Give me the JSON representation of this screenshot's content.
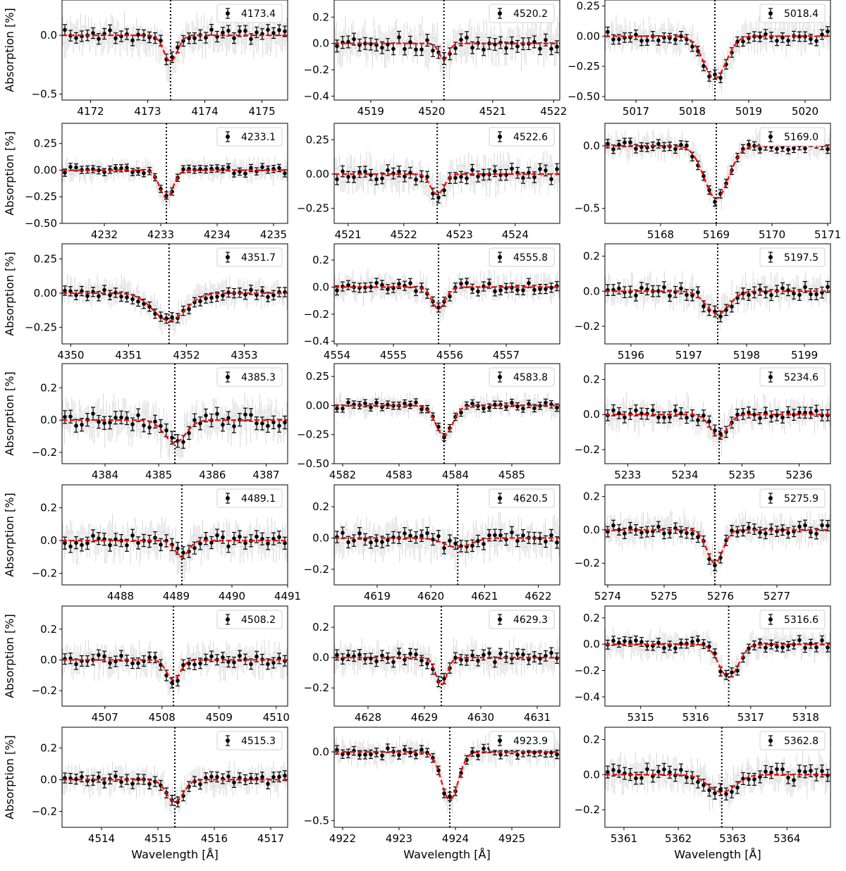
{
  "figure": {
    "ylabel": "Absorption [%]",
    "xlabel": "Wavelength [Å]",
    "fit_color": "#ff0000",
    "point_color": "#000000",
    "raw_color": "#bbbbbb",
    "marker_line_style": "dotted"
  },
  "chart_data": [
    {
      "type": "line",
      "legend": "4173.4",
      "line_center": 4173.4,
      "x_ticks": [
        4172,
        4173,
        4174,
        4175
      ],
      "xlim": [
        4171.5,
        4175.45
      ],
      "y_ticks": [
        -0.5,
        0.0
      ],
      "y_tick_labels": [
        "−0.5",
        "0.0"
      ],
      "ylim": [
        -0.55,
        0.3
      ],
      "dip_depth": 0.22,
      "dip_width": 0.12,
      "noise": 0.06,
      "seed": 11
    },
    {
      "type": "line",
      "legend": "4520.2",
      "line_center": 4520.2,
      "x_ticks": [
        4519,
        4520,
        4521,
        4522
      ],
      "xlim": [
        4518.4,
        4522.1
      ],
      "y_ticks": [
        -0.4,
        -0.2,
        0.0,
        0.2
      ],
      "y_tick_labels": [
        "−0.4",
        "−0.2",
        "0.0",
        "0.2"
      ],
      "ylim": [
        -0.43,
        0.33
      ],
      "dip_depth": 0.12,
      "dip_width": 0.08,
      "noise": 0.06,
      "seed": 12
    },
    {
      "type": "line",
      "legend": "5018.4",
      "line_center": 5018.4,
      "x_ticks": [
        5017,
        5018,
        5019,
        5020
      ],
      "xlim": [
        5016.45,
        5020.45
      ],
      "y_ticks": [
        -0.5,
        -0.25,
        0.0,
        0.25
      ],
      "y_tick_labels": [
        "−0.50",
        "−0.25",
        "0.00",
        "0.25"
      ],
      "ylim": [
        -0.53,
        0.3
      ],
      "dip_depth": 0.35,
      "dip_width": 0.2,
      "noise": 0.05,
      "seed": 13
    },
    {
      "type": "line",
      "legend": "4233.1",
      "line_center": 4233.1,
      "x_ticks": [
        4232,
        4233,
        4234,
        4235
      ],
      "xlim": [
        4231.25,
        4235.25
      ],
      "y_ticks": [
        -0.5,
        -0.25,
        0.0,
        0.25
      ],
      "y_tick_labels": [
        "−0.50",
        "−0.25",
        "0.00",
        "0.25"
      ],
      "ylim": [
        -0.5,
        0.44
      ],
      "dip_depth": 0.26,
      "dip_width": 0.12,
      "noise": 0.04,
      "seed": 14
    },
    {
      "type": "line",
      "legend": "4522.6",
      "line_center": 4522.6,
      "x_ticks": [
        4521,
        4522,
        4523,
        4524
      ],
      "xlim": [
        4520.75,
        4524.8
      ],
      "y_ticks": [
        -0.25,
        0.0,
        0.25
      ],
      "y_tick_labels": [
        "−0.25",
        "0.00",
        "0.25"
      ],
      "ylim": [
        -0.36,
        0.37
      ],
      "dip_depth": 0.15,
      "dip_width": 0.12,
      "noise": 0.05,
      "seed": 15
    },
    {
      "type": "line",
      "legend": "5169.0",
      "line_center": 5169.0,
      "x_ticks": [
        5168,
        5169,
        5170,
        5171
      ],
      "xlim": [
        5167.0,
        5171.05
      ],
      "y_ticks": [
        -0.5,
        0.0
      ],
      "y_tick_labels": [
        "−0.5",
        "0.0"
      ],
      "ylim": [
        -0.62,
        0.18
      ],
      "dip_depth": 0.42,
      "dip_width": 0.22,
      "noise": 0.04,
      "seed": 16
    },
    {
      "type": "line",
      "legend": "4351.7",
      "line_center": 4351.7,
      "x_ticks": [
        4350,
        4351,
        4352,
        4353
      ],
      "xlim": [
        4349.85,
        4353.75
      ],
      "y_ticks": [
        -0.25,
        0.0,
        0.25
      ],
      "y_tick_labels": [
        "−0.25",
        "0.00",
        "0.25"
      ],
      "ylim": [
        -0.37,
        0.36
      ],
      "dip_depth": 0.2,
      "dip_width": 0.28,
      "noise": 0.04,
      "seed": 17
    },
    {
      "type": "line",
      "legend": "4555.8",
      "line_center": 4555.8,
      "x_ticks": [
        4554,
        4555,
        4556,
        4557
      ],
      "xlim": [
        4553.95,
        4557.95
      ],
      "y_ticks": [
        -0.4,
        -0.2,
        0.0,
        0.2
      ],
      "y_tick_labels": [
        "−0.4",
        "−0.2",
        "0.0",
        "0.2"
      ],
      "ylim": [
        -0.42,
        0.32
      ],
      "dip_depth": 0.16,
      "dip_width": 0.12,
      "noise": 0.04,
      "seed": 18
    },
    {
      "type": "line",
      "legend": "5197.5",
      "line_center": 5197.5,
      "x_ticks": [
        5196,
        5197,
        5198,
        5199
      ],
      "xlim": [
        5195.55,
        5199.45
      ],
      "y_ticks": [
        -0.2,
        0.0,
        0.2
      ],
      "y_tick_labels": [
        "−0.2",
        "0.0",
        "0.2"
      ],
      "ylim": [
        -0.3,
        0.27
      ],
      "dip_depth": 0.13,
      "dip_width": 0.2,
      "noise": 0.035,
      "seed": 19
    },
    {
      "type": "line",
      "legend": "4385.3",
      "line_center": 4385.3,
      "x_ticks": [
        4384,
        4385,
        4386,
        4387
      ],
      "xlim": [
        4383.2,
        4387.4
      ],
      "y_ticks": [
        -0.2,
        0.0,
        0.2
      ],
      "y_tick_labels": [
        "−0.2",
        "0.0",
        "0.2"
      ],
      "ylim": [
        -0.27,
        0.35
      ],
      "dip_depth": 0.14,
      "dip_width": 0.2,
      "noise": 0.05,
      "seed": 20
    },
    {
      "type": "line",
      "legend": "4583.8",
      "line_center": 4583.8,
      "x_ticks": [
        4582,
        4583,
        4584,
        4585
      ],
      "xlim": [
        4581.85,
        4585.85
      ],
      "y_ticks": [
        -0.5,
        -0.25,
        0.0,
        0.25
      ],
      "y_tick_labels": [
        "−0.50",
        "−0.25",
        "0.00",
        "0.25"
      ],
      "ylim": [
        -0.5,
        0.36
      ],
      "dip_depth": 0.26,
      "dip_width": 0.15,
      "noise": 0.035,
      "seed": 21
    },
    {
      "type": "line",
      "legend": "5234.6",
      "line_center": 5234.6,
      "x_ticks": [
        5233,
        5234,
        5235,
        5236
      ],
      "xlim": [
        5232.6,
        5236.55
      ],
      "y_ticks": [
        -0.2,
        0.0,
        0.2
      ],
      "y_tick_labels": [
        "−0.2",
        "0.0",
        "0.2"
      ],
      "ylim": [
        -0.28,
        0.29
      ],
      "dip_depth": 0.13,
      "dip_width": 0.15,
      "noise": 0.035,
      "seed": 22
    },
    {
      "type": "line",
      "legend": "4489.1",
      "line_center": 4489.1,
      "x_ticks": [
        4488,
        4489,
        4490,
        4491
      ],
      "xlim": [
        4486.95,
        4491.0
      ],
      "y_ticks": [
        -0.2,
        0.0,
        0.2
      ],
      "y_tick_labels": [
        "−0.2",
        "0.0",
        "0.2"
      ],
      "ylim": [
        -0.27,
        0.34
      ],
      "dip_depth": 0.1,
      "dip_width": 0.12,
      "noise": 0.045,
      "seed": 23
    },
    {
      "type": "line",
      "legend": "4620.5",
      "line_center": 4620.5,
      "x_ticks": [
        4619,
        4620,
        4621,
        4622
      ],
      "xlim": [
        4618.2,
        4622.4
      ],
      "y_ticks": [
        -0.2,
        0.0,
        0.2
      ],
      "y_tick_labels": [
        "−0.2",
        "0.0",
        "0.2"
      ],
      "ylim": [
        -0.3,
        0.34
      ],
      "dip_depth": 0.06,
      "dip_width": 0.25,
      "noise": 0.045,
      "seed": 24
    },
    {
      "type": "line",
      "legend": "5275.9",
      "line_center": 5275.9,
      "x_ticks": [
        5274,
        5275,
        5276,
        5277
      ],
      "xlim": [
        5273.95,
        5277.95
      ],
      "y_ticks": [
        -0.2,
        0.0,
        0.2
      ],
      "y_tick_labels": [
        "−0.2",
        "0.0",
        "0.2"
      ],
      "ylim": [
        -0.33,
        0.27
      ],
      "dip_depth": 0.2,
      "dip_width": 0.14,
      "noise": 0.035,
      "seed": 25
    },
    {
      "type": "line",
      "legend": "4508.2",
      "line_center": 4508.2,
      "x_ticks": [
        4507,
        4508,
        4509,
        4510
      ],
      "xlim": [
        4506.25,
        4510.2
      ],
      "y_ticks": [
        -0.2,
        0.0,
        0.2
      ],
      "y_tick_labels": [
        "−0.2",
        "0.0",
        "0.2"
      ],
      "ylim": [
        -0.3,
        0.35
      ],
      "dip_depth": 0.13,
      "dip_width": 0.12,
      "noise": 0.04,
      "seed": 26
    },
    {
      "type": "line",
      "legend": "4629.3",
      "line_center": 4629.3,
      "x_ticks": [
        4628,
        4629,
        4630,
        4631
      ],
      "xlim": [
        4627.4,
        4631.4
      ],
      "y_ticks": [
        -0.2,
        0.0,
        0.2
      ],
      "y_tick_labels": [
        "−0.2",
        "0.0",
        "0.2"
      ],
      "ylim": [
        -0.32,
        0.34
      ],
      "dip_depth": 0.18,
      "dip_width": 0.1,
      "noise": 0.04,
      "seed": 27
    },
    {
      "type": "line",
      "legend": "5316.6",
      "line_center": 5316.6,
      "x_ticks": [
        5315,
        5316,
        5317,
        5318
      ],
      "xlim": [
        5314.35,
        5318.45
      ],
      "y_ticks": [
        -0.4,
        -0.2,
        0.0,
        0.2
      ],
      "y_tick_labels": [
        "−0.4",
        "−0.2",
        "0.0",
        "0.2"
      ],
      "ylim": [
        -0.47,
        0.29
      ],
      "dip_depth": 0.25,
      "dip_width": 0.18,
      "noise": 0.04,
      "seed": 28
    },
    {
      "type": "line",
      "legend": "4515.3",
      "line_center": 4515.3,
      "x_ticks": [
        4514,
        4515,
        4516,
        4517
      ],
      "xlim": [
        4513.3,
        4517.3
      ],
      "y_ticks": [
        -0.2,
        0.0,
        0.2
      ],
      "y_tick_labels": [
        "−0.2",
        "0.0",
        "0.2"
      ],
      "ylim": [
        -0.3,
        0.33
      ],
      "dip_depth": 0.14,
      "dip_width": 0.15,
      "noise": 0.035,
      "seed": 29
    },
    {
      "type": "line",
      "legend": "4923.9",
      "line_center": 4923.9,
      "x_ticks": [
        4922,
        4923,
        4924,
        4925
      ],
      "xlim": [
        4921.85,
        4925.85
      ],
      "y_ticks": [
        -0.5,
        0.0
      ],
      "y_tick_labels": [
        "−0.5",
        "0.0"
      ],
      "ylim": [
        -0.55,
        0.18
      ],
      "dip_depth": 0.35,
      "dip_width": 0.15,
      "noise": 0.035,
      "seed": 30
    },
    {
      "type": "line",
      "legend": "5362.8",
      "line_center": 5362.8,
      "x_ticks": [
        5361,
        5362,
        5363,
        5364
      ],
      "xlim": [
        5360.65,
        5364.8
      ],
      "y_ticks": [
        -0.2,
        0.0,
        0.2
      ],
      "y_tick_labels": [
        "−0.2",
        "0.0",
        "0.2"
      ],
      "ylim": [
        -0.3,
        0.27
      ],
      "dip_depth": 0.1,
      "dip_width": 0.25,
      "noise": 0.04,
      "seed": 31
    }
  ]
}
